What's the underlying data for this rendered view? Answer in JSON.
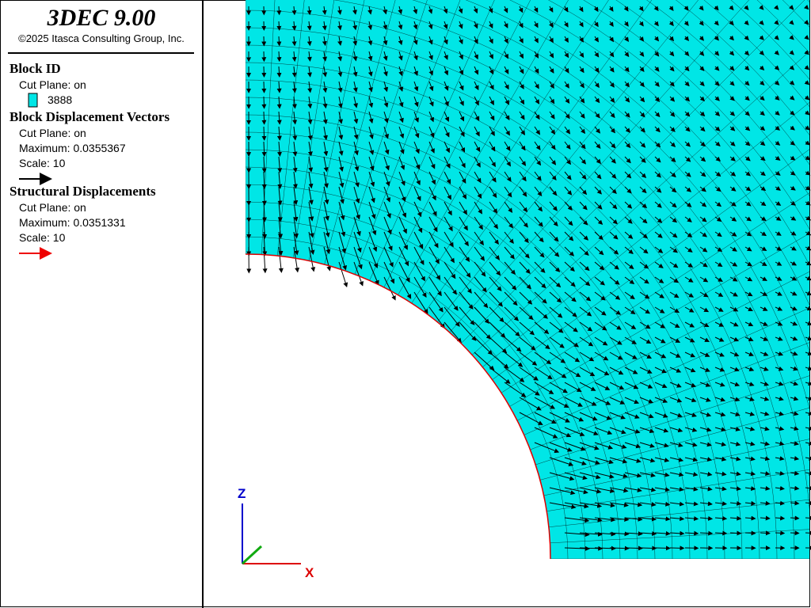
{
  "header": {
    "title": "3DEC 9.00",
    "copyright": "©2025 Itasca Consulting Group, Inc."
  },
  "legend": {
    "sections": [
      {
        "title": "Block  ID",
        "lines": [
          "Cut Plane: on"
        ],
        "key": "3888"
      },
      {
        "title": "Block Displacement Vectors",
        "lines": [
          "Cut Plane: on",
          "Maximum: 0.0355367",
          "Scale: 10"
        ]
      },
      {
        "title": "Structural Displacements",
        "lines": [
          "Cut Plane: on",
          "Maximum: 0.0351331",
          "Scale: 10"
        ]
      }
    ]
  },
  "axes": {
    "z": "Z",
    "x": "X"
  }
}
